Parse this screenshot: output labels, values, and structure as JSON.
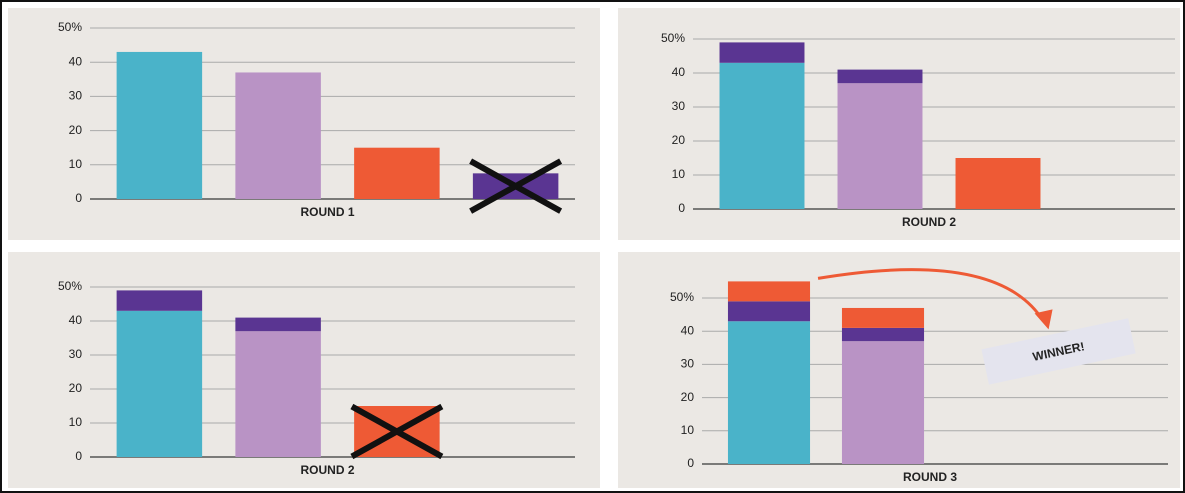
{
  "chart_data": [
    {
      "type": "bar",
      "xlabel": "ROUND 1",
      "categories": [
        null,
        null,
        null,
        null
      ],
      "series": [
        {
          "colors": [
            "#4ab3c9",
            "#b993c5",
            "#ee5a35",
            "#5a3592"
          ],
          "values": [
            43,
            37,
            15,
            7.5
          ]
        }
      ],
      "ylim": [
        0,
        50
      ],
      "yticks": [
        0,
        10,
        20,
        30,
        40,
        {
          "value": 50,
          "label": "50%"
        }
      ],
      "grid": true,
      "eliminated": 3
    },
    {
      "type": "bar",
      "xlabel": "ROUND 2",
      "categories": [
        null,
        null,
        null,
        null
      ],
      "series": [
        {
          "colors": [
            "#4ab3c9",
            "#b993c5",
            "#ee5a35",
            "#5a3592"
          ],
          "values": [
            43,
            37,
            15,
            null
          ]
        },
        {
          "color": "#5a3592",
          "values": [
            6,
            4,
            null,
            null
          ]
        }
      ],
      "ylim": [
        0,
        50
      ],
      "yticks": [
        0,
        10,
        20,
        30,
        40,
        {
          "value": 50,
          "label": "50%"
        }
      ],
      "grid": true
    },
    {
      "type": "bar",
      "xlabel": "ROUND 2",
      "categories": [
        null,
        null,
        null,
        null
      ],
      "series": [
        {
          "colors": [
            "#4ab3c9",
            "#b993c5",
            "#ee5a35",
            "#5a3592"
          ],
          "values": [
            43,
            37,
            15,
            null
          ]
        },
        {
          "color": "#5a3592",
          "values": [
            6,
            4,
            null,
            null
          ]
        }
      ],
      "ylim": [
        0,
        50
      ],
      "yticks": [
        0,
        10,
        20,
        30,
        40,
        {
          "value": 50,
          "label": "50%"
        }
      ],
      "grid": true,
      "eliminated": 2
    },
    {
      "type": "bar",
      "xlabel": "ROUND 3",
      "categories": [
        null,
        null,
        null,
        null
      ],
      "series": [
        {
          "colors": [
            "#4ab3c9",
            "#b993c5",
            "#ee5a35",
            "#5a3592"
          ],
          "values": [
            43,
            37,
            null,
            null
          ]
        },
        {
          "color": "#5a3592",
          "values": [
            6,
            4,
            null,
            null
          ]
        },
        {
          "color": "#ee5a35",
          "values": [
            6,
            6,
            null,
            null
          ]
        }
      ],
      "ylim": [
        0,
        60
      ],
      "yticks": [
        0,
        10,
        20,
        30,
        40,
        {
          "value": 50,
          "label": "50%"
        }
      ],
      "grid": true,
      "annotation": "WINNER!",
      "winner": 0
    }
  ]
}
